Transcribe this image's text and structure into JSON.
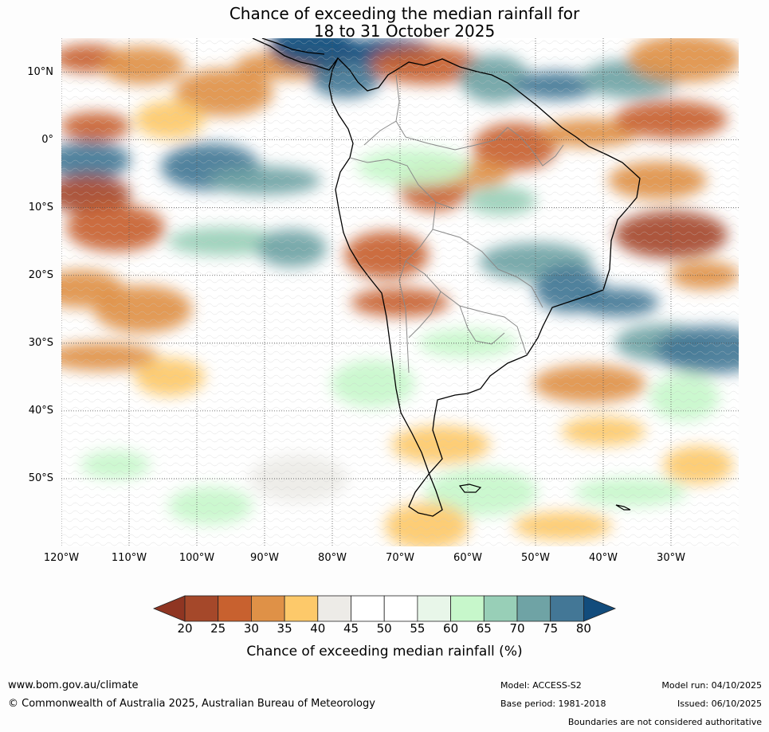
{
  "title_line1": "Chance of exceeding the median rainfall for",
  "title_line2": "18 to 31 October 2025",
  "map": {
    "lon_range": [
      -120,
      -20
    ],
    "lat_range": [
      -60,
      15
    ],
    "lat_labels": [
      "10°N",
      "0°",
      "10°S",
      "20°S",
      "30°S",
      "40°S",
      "50°S"
    ],
    "lat_values": [
      10,
      0,
      -10,
      -20,
      -30,
      -40,
      -50
    ],
    "lon_labels": [
      "120°W",
      "110°W",
      "100°W",
      "90°W",
      "80°W",
      "70°W",
      "60°W",
      "50°W",
      "40°W",
      "30°W"
    ],
    "lon_values": [
      -120,
      -110,
      -100,
      -90,
      -80,
      -70,
      -60,
      -50,
      -40,
      -30
    ],
    "grid": true,
    "blobs": [
      {
        "lon": -116,
        "lat": 12,
        "v": 25
      },
      {
        "lon": -108,
        "lat": 11,
        "v": 30
      },
      {
        "lon": -96,
        "lat": 7,
        "v": 30
      },
      {
        "lon": -86,
        "lat": 11,
        "v": 30
      },
      {
        "lon": -78,
        "lat": 9,
        "v": 75
      },
      {
        "lon": -83,
        "lat": 14,
        "v": 80
      },
      {
        "lon": -72,
        "lat": 13,
        "v": 80
      },
      {
        "lon": -66,
        "lat": 11,
        "v": 25
      },
      {
        "lon": -56,
        "lat": 9,
        "v": 70
      },
      {
        "lon": -47,
        "lat": 8,
        "v": 75
      },
      {
        "lon": -36,
        "lat": 9,
        "v": 70
      },
      {
        "lon": -28,
        "lat": 12,
        "v": 30
      },
      {
        "lon": -115,
        "lat": 2,
        "v": 25
      },
      {
        "lon": -116,
        "lat": -3,
        "v": 75
      },
      {
        "lon": -98,
        "lat": -4,
        "v": 75
      },
      {
        "lon": -90,
        "lat": -6,
        "v": 70
      },
      {
        "lon": -104,
        "lat": 3,
        "v": 35
      },
      {
        "lon": -53,
        "lat": -1,
        "v": 25
      },
      {
        "lon": -42,
        "lat": 1,
        "v": 30
      },
      {
        "lon": -30,
        "lat": 3,
        "v": 25
      },
      {
        "lon": -65,
        "lat": -7,
        "v": 25
      },
      {
        "lon": -60,
        "lat": -5,
        "v": 30
      },
      {
        "lon": -32,
        "lat": -6,
        "v": 30
      },
      {
        "lon": -30,
        "lat": -14,
        "v": 20
      },
      {
        "lon": -25,
        "lat": -20,
        "v": 30
      },
      {
        "lon": -116,
        "lat": -8,
        "v": 20
      },
      {
        "lon": -112,
        "lat": -13,
        "v": 25
      },
      {
        "lon": -96,
        "lat": -15,
        "v": 65
      },
      {
        "lon": -86,
        "lat": -16,
        "v": 70
      },
      {
        "lon": -72,
        "lat": -17,
        "v": 25
      },
      {
        "lon": -70,
        "lat": -24,
        "v": 25
      },
      {
        "lon": -50,
        "lat": -18,
        "v": 70
      },
      {
        "lon": -45,
        "lat": -22,
        "v": 75
      },
      {
        "lon": -38,
        "lat": -24,
        "v": 75
      },
      {
        "lon": -31,
        "lat": -30,
        "v": 70
      },
      {
        "lon": -24,
        "lat": -31,
        "v": 75
      },
      {
        "lon": -55,
        "lat": -9,
        "v": 65
      },
      {
        "lon": -117,
        "lat": -22,
        "v": 30
      },
      {
        "lon": -108,
        "lat": -25,
        "v": 30
      },
      {
        "lon": -114,
        "lat": -32,
        "v": 30
      },
      {
        "lon": -104,
        "lat": -35,
        "v": 35
      },
      {
        "lon": -74,
        "lat": -36,
        "v": 60
      },
      {
        "lon": -60,
        "lat": -30,
        "v": 60
      },
      {
        "lon": -42,
        "lat": -36,
        "v": 30
      },
      {
        "lon": -28,
        "lat": -38,
        "v": 60
      },
      {
        "lon": -40,
        "lat": -43,
        "v": 35
      },
      {
        "lon": -64,
        "lat": -45,
        "v": 35
      },
      {
        "lon": -58,
        "lat": -52,
        "v": 60
      },
      {
        "lon": -112,
        "lat": -48,
        "v": 60
      },
      {
        "lon": -98,
        "lat": -54,
        "v": 60
      },
      {
        "lon": -85,
        "lat": -50,
        "v": 40
      },
      {
        "lon": -36,
        "lat": -52,
        "v": 60
      },
      {
        "lon": -26,
        "lat": -48,
        "v": 35
      },
      {
        "lon": -66,
        "lat": -57,
        "v": 35
      },
      {
        "lon": -46,
        "lat": -57,
        "v": 35
      },
      {
        "lon": -68,
        "lat": -4,
        "v": 60
      }
    ]
  },
  "colorbar": {
    "title": "Chance of exceeding median rainfall (%)",
    "ticks": [
      "20",
      "25",
      "30",
      "35",
      "40",
      "45",
      "50",
      "55",
      "60",
      "65",
      "70",
      "75",
      "80"
    ],
    "colors": [
      "#a5482a",
      "#c8612f",
      "#df9147",
      "#fdc96a",
      "#edebe7",
      "#ffffff",
      "#ffffff",
      "#e8f6e9",
      "#c7f7cb",
      "#98cfb7",
      "#6fa3a5",
      "#437796"
    ],
    "low_color": "#8f3522",
    "high_color": "#124c7c"
  },
  "footer": {
    "url": "www.bom.gov.au/climate",
    "copyright": "© Commonwealth of Australia 2025, Australian Bureau of Meteorology",
    "model": "Model: ACCESS-S2",
    "base_period": "Base period: 1981-2018",
    "model_run": "Model run: 04/10/2025",
    "issued": "Issued: 06/10/2025",
    "disclaimer": "Boundaries are not considered authoritative"
  }
}
